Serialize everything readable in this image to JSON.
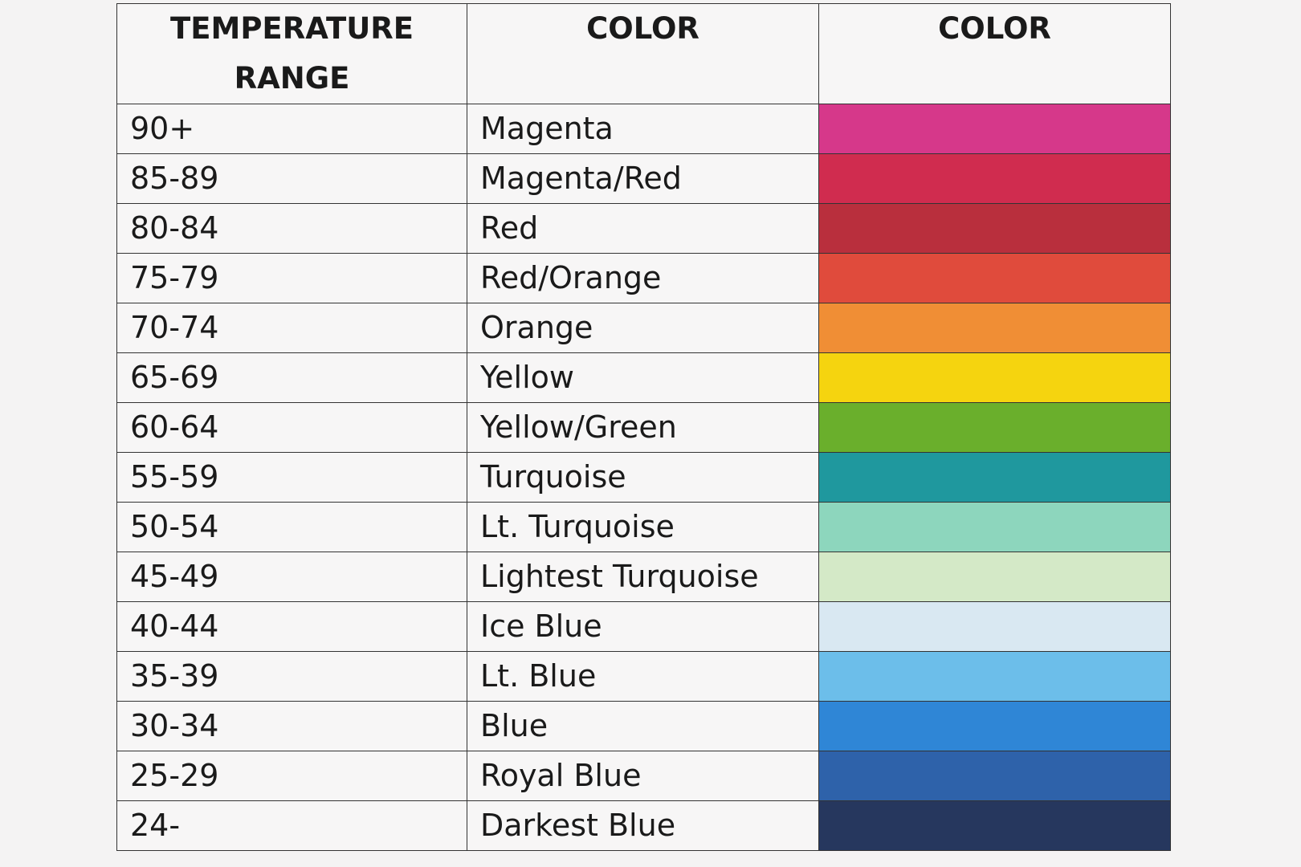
{
  "headers": [
    "TEMPERATURE RANGE",
    "COLOR",
    "COLOR"
  ],
  "rows": [
    {
      "range": "90+",
      "color": "Magenta",
      "swatch": "#d6388a"
    },
    {
      "range": "85-89",
      "color": "Magenta/Red",
      "swatch": "#d02c4f"
    },
    {
      "range": "80-84",
      "color": "Red",
      "swatch": "#b92f3d"
    },
    {
      "range": "75-79",
      "color": "Red/Orange",
      "swatch": "#e04b3c"
    },
    {
      "range": "70-74",
      "color": "Orange",
      "swatch": "#f08e35"
    },
    {
      "range": "65-69",
      "color": "Yellow",
      "swatch": "#f5d40f"
    },
    {
      "range": "60-64",
      "color": "Yellow/Green",
      "swatch": "#6aaf2c"
    },
    {
      "range": "55-59",
      "color": "Turquoise",
      "swatch": "#1f989e"
    },
    {
      "range": "50-54",
      "color": "Lt. Turquoise",
      "swatch": "#8dd6bd"
    },
    {
      "range": "45-49",
      "color": "Lightest Turquoise",
      "swatch": "#d4e9c7"
    },
    {
      "range": "40-44",
      "color": "Ice Blue",
      "swatch": "#d9e8f2"
    },
    {
      "range": "35-39",
      "color": "Lt. Blue",
      "swatch": "#6cbeea"
    },
    {
      "range": "30-34",
      "color": "Blue",
      "swatch": "#2f86d6"
    },
    {
      "range": "25-29",
      "color": "Royal Blue",
      "swatch": "#2e62aa"
    },
    {
      "range": "24-",
      "color": "Darkest Blue",
      "swatch": "#26375e"
    }
  ]
}
